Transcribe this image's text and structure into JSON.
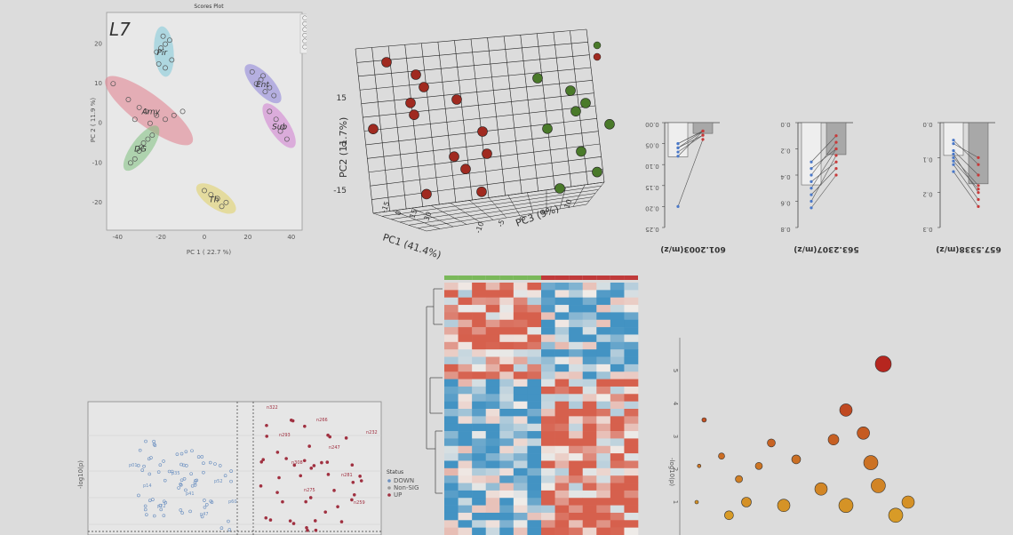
{
  "scores_plot": {
    "title": "Scores Plot",
    "panel_label": "L7",
    "xlabel": "PC 1 ( 22.7 %)",
    "ylabel": "PC 2 ( 11.9 %)",
    "x_ticks": [
      "-40",
      "-20",
      "0",
      "20",
      "40"
    ],
    "y_ticks": [
      "20",
      "10",
      "0",
      "-10",
      "-20"
    ],
    "legend": [
      "Amy",
      "DG",
      "Ent",
      "Pir",
      "Sub",
      "Th"
    ],
    "groups": [
      {
        "name": "Pir",
        "color": "#7ec8d8"
      },
      {
        "name": "Amy",
        "color": "#e07c8a"
      },
      {
        "name": "Ent",
        "color": "#8a7fd8"
      },
      {
        "name": "Sub",
        "color": "#d07ad0"
      },
      {
        "name": "DG",
        "color": "#7dbf7d"
      },
      {
        "name": "Th",
        "color": "#e0d060"
      }
    ]
  },
  "pca3d": {
    "xlabel": "PC1 (41.4%)",
    "ylabel": "PC2 (11.7%)",
    "zlabel": "PC3 (9%)",
    "y_ticks": [
      "15",
      "0",
      "-15"
    ],
    "x_ticks": [
      "-15",
      "0",
      "15",
      "30"
    ],
    "z_ticks": [
      "-10",
      "-5",
      "0",
      "5",
      "10"
    ]
  },
  "paired_plots": [
    {
      "label": "601.2003(m/z)",
      "ticks": [
        "0.00",
        "0.05",
        "0.10",
        "0.15",
        "0.20",
        "0.25"
      ]
    },
    {
      "label": "563.2307(m/z)",
      "ticks": [
        "0.0",
        "0.2",
        "0.4",
        "0.6",
        "0.8"
      ]
    },
    {
      "label": "657.5338(m/z)",
      "ticks": [
        "0.0",
        "0.1",
        "0.2",
        "0.3"
      ]
    }
  ],
  "volcano": {
    "ylabel": "-log10(p)",
    "legend_title": "Status",
    "legend": [
      "DOWN",
      "Non-SIG",
      "UP"
    ],
    "down_labels": [
      "p01",
      "p14",
      "p22",
      "p35",
      "p41",
      "p47",
      "p52",
      "p60"
    ],
    "up_labels": [
      "n322",
      "n293",
      "n308",
      "n275",
      "n266",
      "n247",
      "n281",
      "n259",
      "n232"
    ]
  },
  "bubble": {
    "ylabel": "-log10(p)",
    "y_ticks": [
      "5",
      "4",
      "3",
      "2",
      "1"
    ]
  },
  "chart_data": [
    {
      "type": "scatter",
      "title": "Scores Plot",
      "xlabel": "PC 1 ( 22.7 %)",
      "ylabel": "PC 2 ( 11.9 %)",
      "xlim": [
        -45,
        45
      ],
      "ylim": [
        -27,
        28
      ],
      "series": [
        {
          "name": "Pir",
          "points": [
            [
              -22,
              18
            ],
            [
              -20,
              19
            ],
            [
              -18,
              20
            ],
            [
              -21,
              15
            ],
            [
              -18,
              14
            ],
            [
              -15,
              16
            ],
            [
              -19,
              22
            ],
            [
              -16,
              21
            ]
          ]
        },
        {
          "name": "Amy",
          "points": [
            [
              -42,
              10
            ],
            [
              -35,
              6
            ],
            [
              -30,
              4
            ],
            [
              -27,
              3
            ],
            [
              -22,
              2
            ],
            [
              -18,
              1
            ],
            [
              -14,
              2
            ],
            [
              -10,
              3
            ],
            [
              -32,
              1
            ],
            [
              -25,
              0
            ]
          ]
        },
        {
          "name": "Ent",
          "points": [
            [
              22,
              13
            ],
            [
              26,
              11
            ],
            [
              30,
              9
            ],
            [
              28,
              8
            ],
            [
              24,
              10
            ],
            [
              32,
              7
            ],
            [
              27,
              12
            ]
          ]
        },
        {
          "name": "Sub",
          "points": [
            [
              30,
              3
            ],
            [
              33,
              1
            ],
            [
              36,
              -1
            ],
            [
              38,
              -4
            ],
            [
              35,
              -2
            ]
          ]
        },
        {
          "name": "DG",
          "points": [
            [
              -34,
              -10
            ],
            [
              -30,
              -7
            ],
            [
              -28,
              -5
            ],
            [
              -26,
              -4
            ],
            [
              -24,
              -3
            ],
            [
              -32,
              -9
            ],
            [
              -29,
              -6
            ]
          ]
        },
        {
          "name": "Th",
          "points": [
            [
              0,
              -17
            ],
            [
              3,
              -18
            ],
            [
              6,
              -19
            ],
            [
              8,
              -21
            ],
            [
              10,
              -20
            ]
          ]
        }
      ]
    },
    {
      "type": "scatter",
      "title": "",
      "xlabel": "PC1 (41.4%)",
      "ylabel": "PC2 (11.7%)",
      "zlabel": "PC3 (9%)",
      "series": [
        {
          "name": "",
          "color": "#a02a20",
          "points": [
            [
              -15,
              12,
              0
            ],
            [
              -10,
              10,
              2
            ],
            [
              -5,
              8,
              -2
            ],
            [
              0,
              6,
              1
            ],
            [
              -12,
              4,
              3
            ],
            [
              -8,
              2,
              -1
            ],
            [
              5,
              0,
              2
            ],
            [
              -18,
              -2,
              0
            ],
            [
              10,
              -4,
              -3
            ],
            [
              -3,
              -6,
              4
            ],
            [
              2,
              -8,
              1
            ],
            [
              8,
              -12,
              -2
            ],
            [
              -6,
              -14,
              0
            ]
          ]
        },
        {
          "name": "",
          "color": "#4a7a2a",
          "points": [
            [
              15,
              12,
              5
            ],
            [
              20,
              10,
              8
            ],
            [
              25,
              8,
              6
            ],
            [
              22,
              6,
              7
            ],
            [
              28,
              4,
              9
            ],
            [
              18,
              2,
              4
            ],
            [
              24,
              -2,
              6
            ],
            [
              26,
              -6,
              8
            ],
            [
              20,
              -10,
              5
            ]
          ]
        }
      ]
    },
    {
      "type": "line",
      "title": "",
      "xlabel": "601.2003(m/z)",
      "ylabel": "",
      "ylim": [
        0,
        0.25
      ],
      "series": [
        {
          "name": "",
          "values": [
            [
              0.05,
              0.02
            ],
            [
              0.06,
              0.02
            ],
            [
              0.07,
              0.03
            ],
            [
              0.08,
              0.02
            ],
            [
              0.06,
              0.03
            ],
            [
              0.05,
              0.02
            ],
            [
              0.2,
              0.04
            ]
          ]
        }
      ]
    },
    {
      "type": "line",
      "title": "",
      "xlabel": "563.2307(m/z)",
      "ylabel": "",
      "ylim": [
        0,
        0.8
      ],
      "series": [
        {
          "name": "",
          "values": [
            [
              0.6,
              0.25
            ],
            [
              0.5,
              0.2
            ],
            [
              0.45,
              0.3
            ],
            [
              0.55,
              0.35
            ],
            [
              0.4,
              0.15
            ],
            [
              0.35,
              0.2
            ],
            [
              0.3,
              0.1
            ],
            [
              0.65,
              0.4
            ]
          ]
        }
      ]
    },
    {
      "type": "line",
      "title": "",
      "xlabel": "657.5338(m/z)",
      "ylabel": "",
      "ylim": [
        0,
        0.3
      ],
      "series": [
        {
          "name": "",
          "values": [
            [
              0.05,
              0.12
            ],
            [
              0.08,
              0.15
            ],
            [
              0.1,
              0.18
            ],
            [
              0.12,
              0.22
            ],
            [
              0.06,
              0.1
            ],
            [
              0.09,
              0.2
            ],
            [
              0.14,
              0.24
            ],
            [
              0.11,
              0.19
            ]
          ]
        }
      ]
    },
    {
      "type": "scatter",
      "title": "",
      "xlabel": "",
      "ylabel": "-log10(p)",
      "series": [
        {
          "name": "DOWN",
          "color": "#6a8fc0"
        },
        {
          "name": "Non-SIG",
          "color": "#999999"
        },
        {
          "name": "UP",
          "color": "#a03040"
        }
      ]
    },
    {
      "type": "heatmap",
      "title": "",
      "rows": 34,
      "cols": 14
    },
    {
      "type": "scatter",
      "title": "",
      "xlabel": "",
      "ylabel": "-log10(p)",
      "ylim": [
        0,
        6
      ],
      "series": [
        {
          "name": "",
          "points": [
            [
              8,
              5.2,
              18
            ],
            [
              6.5,
              3.8,
              14
            ],
            [
              7.2,
              3.1,
              14
            ],
            [
              7.5,
              2.2,
              16
            ],
            [
              6,
              2.9,
              12
            ],
            [
              4.5,
              2.3,
              10
            ],
            [
              3.5,
              2.8,
              9
            ],
            [
              3,
              2.1,
              8
            ],
            [
              2.5,
              1.0,
              11
            ],
            [
              4,
              0.9,
              14
            ],
            [
              5.5,
              1.4,
              14
            ],
            [
              6.5,
              0.9,
              16
            ],
            [
              7.8,
              1.5,
              16
            ],
            [
              8.5,
              0.6,
              16
            ],
            [
              9,
              1.0,
              14
            ],
            [
              1.8,
              0.6,
              10
            ],
            [
              2.2,
              1.7,
              8
            ],
            [
              1.5,
              2.4,
              7
            ],
            [
              0.8,
              3.5,
              5
            ],
            [
              0.6,
              2.1,
              4
            ],
            [
              0.5,
              1.0,
              4
            ]
          ]
        }
      ]
    }
  ]
}
